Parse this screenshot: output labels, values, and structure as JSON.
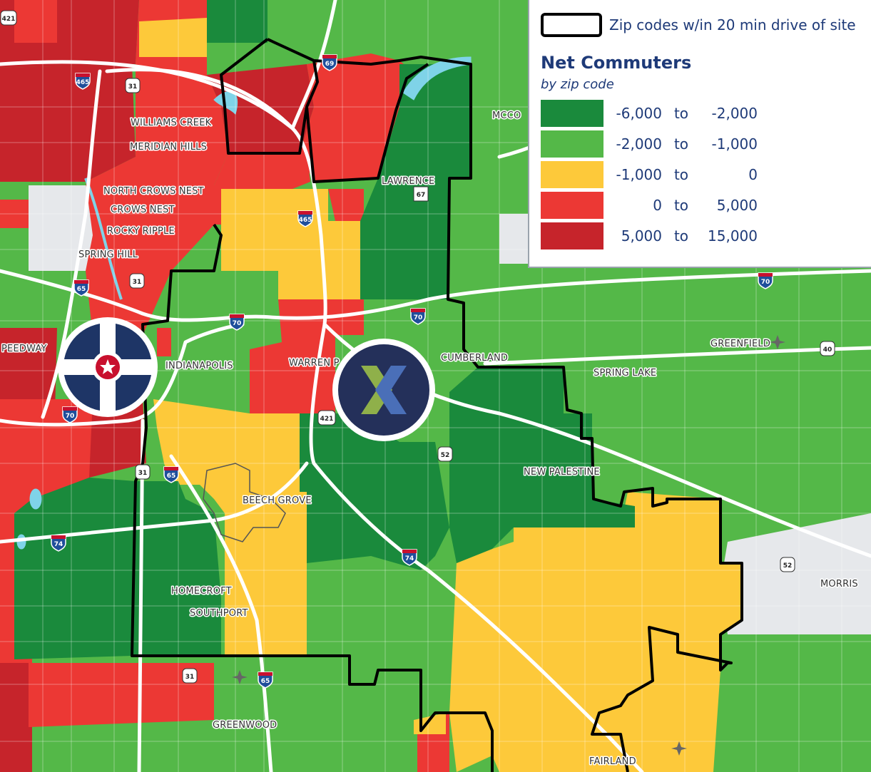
{
  "legend": {
    "zip_boundary_label": "Zip codes w/in 20 min drive of site",
    "title": "Net Commuters",
    "subtitle": "by zip code",
    "bins": [
      {
        "low": "-6,000",
        "sep": "to",
        "high": "-2,000",
        "color": "#1a8a3c"
      },
      {
        "low": "-2,000",
        "sep": "to",
        "high": "-1,000",
        "color": "#54b848"
      },
      {
        "low": "-1,000",
        "sep": "to",
        "high": "0",
        "color": "#fdc93a"
      },
      {
        "low": "0",
        "sep": "to",
        "high": "5,000",
        "color": "#ec3834"
      },
      {
        "low": "5,000",
        "sep": "to",
        "high": "15,000",
        "color": "#c6242b"
      }
    ]
  },
  "places": {
    "williams_creek": "WILLIAMS CREEK",
    "meridian_hills": "MERIDIAN HILLS",
    "north_crows_nest": "NORTH CROWS NEST",
    "crows_nest": "CROWS NEST",
    "rocky_ripple": "ROCKY RIPPLE",
    "spring_hill": "SPRING HILL",
    "lawrence": "LAWRENCE",
    "mccord": "MCCO",
    "speedway": "PEEDWAY",
    "indianapolis": "INDIANAPOLIS",
    "warren_park": "WARREN P",
    "cumberland": "CUMBERLAND",
    "greenfield": "GREENFIELD",
    "spring_lake": "SPRING LAKE",
    "new_palestine": "NEW PALESTINE",
    "beech_grove": "BEECH GROVE",
    "homecroft": "HOMECROFT",
    "southport": "SOUTHPORT",
    "morristown": "MORRIS",
    "greenwood": "GREENWOOD",
    "fairland": "FAIRLAND"
  },
  "shields": {
    "i465_n": "465",
    "i69": "69",
    "i465_mid": "465",
    "i465_nw": "465",
    "us31_n": "31",
    "us31_mid": "31",
    "us31_s": "31",
    "us31_sw": "31",
    "sr67": "67",
    "i65_n": "65",
    "i65_s": "65",
    "i65_far_s": "65",
    "i70_w": "70",
    "i70_mid": "70",
    "i70_e": "70",
    "i70_far_e": "70",
    "us40": "40",
    "us421_n": "421",
    "us421": "421",
    "us52": "52",
    "us52_e": "52",
    "i74_w": "74",
    "i74_e": "74"
  },
  "colors": {
    "dark_green": "#1a8a3c",
    "green": "#54b848",
    "yellow": "#fdc93a",
    "red": "#ec3834",
    "dark_red": "#c6242b",
    "grey": "#e6e8eb",
    "indy_logo_blue": "#1e3566",
    "site_logo_bg": "#24305a"
  },
  "icons": [
    "indianapolis-city-seal-icon",
    "site-x-logo-icon",
    "airport-icon"
  ]
}
